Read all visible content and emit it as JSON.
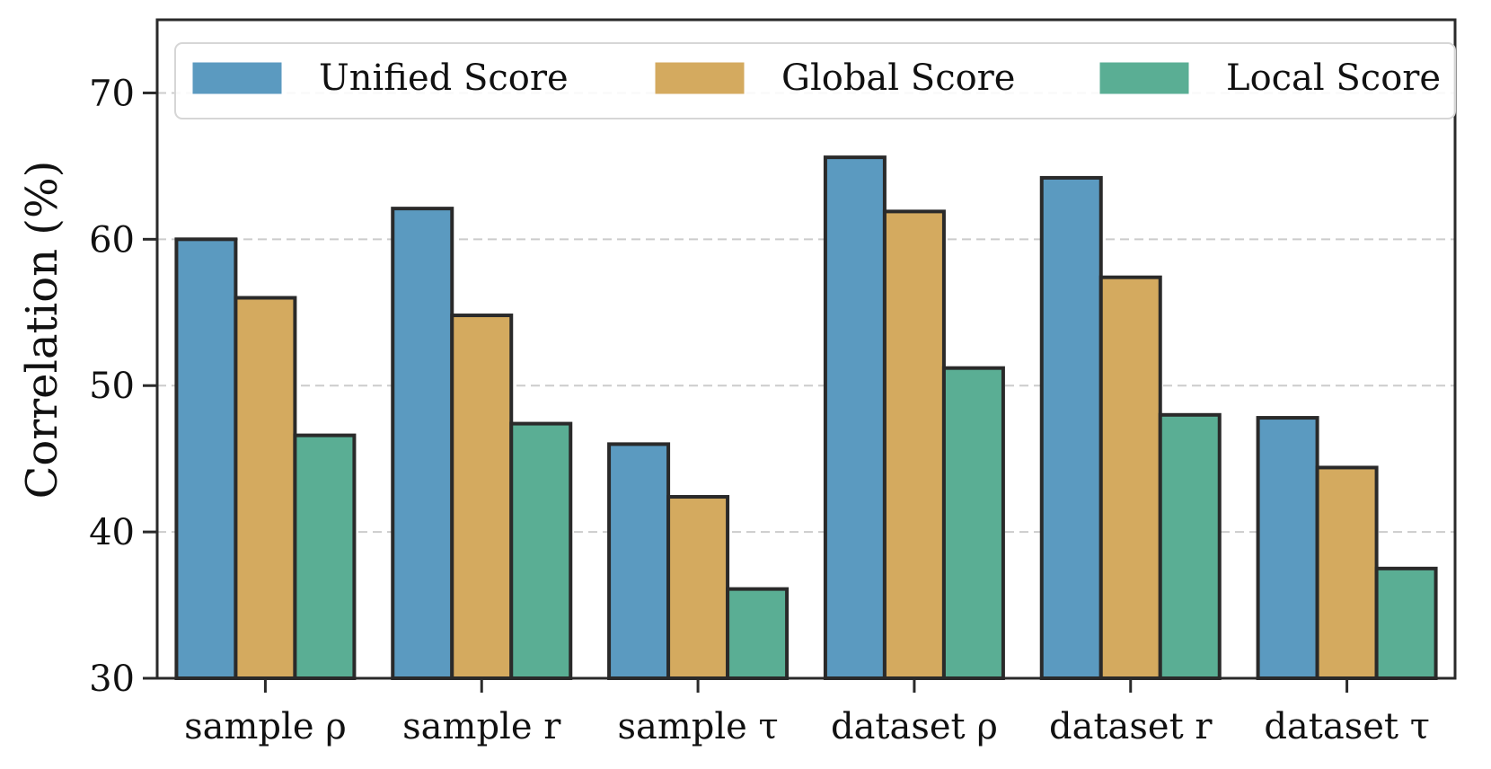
{
  "chart_data": {
    "type": "bar",
    "title": "",
    "xlabel": "",
    "ylabel": "Correlation (%)",
    "ylim": [
      30,
      75
    ],
    "yticks": [
      30,
      40,
      50,
      60,
      70
    ],
    "grid": "horizontal-dashed",
    "legend_position": "top",
    "categories": [
      "sample ρ",
      "sample r",
      "sample τ",
      "dataset ρ",
      "dataset r",
      "dataset τ"
    ],
    "series": [
      {
        "name": "Unified Score",
        "color": "#5b9ac0",
        "values": [
          60.0,
          62.1,
          46.0,
          65.6,
          64.2,
          47.8
        ]
      },
      {
        "name": "Global Score",
        "color": "#d4aa5f",
        "values": [
          56.0,
          54.8,
          42.4,
          61.9,
          57.4,
          44.4
        ]
      },
      {
        "name": "Local Score",
        "color": "#5aae94",
        "values": [
          46.6,
          47.4,
          36.1,
          51.2,
          48.0,
          37.5
        ]
      }
    ]
  }
}
